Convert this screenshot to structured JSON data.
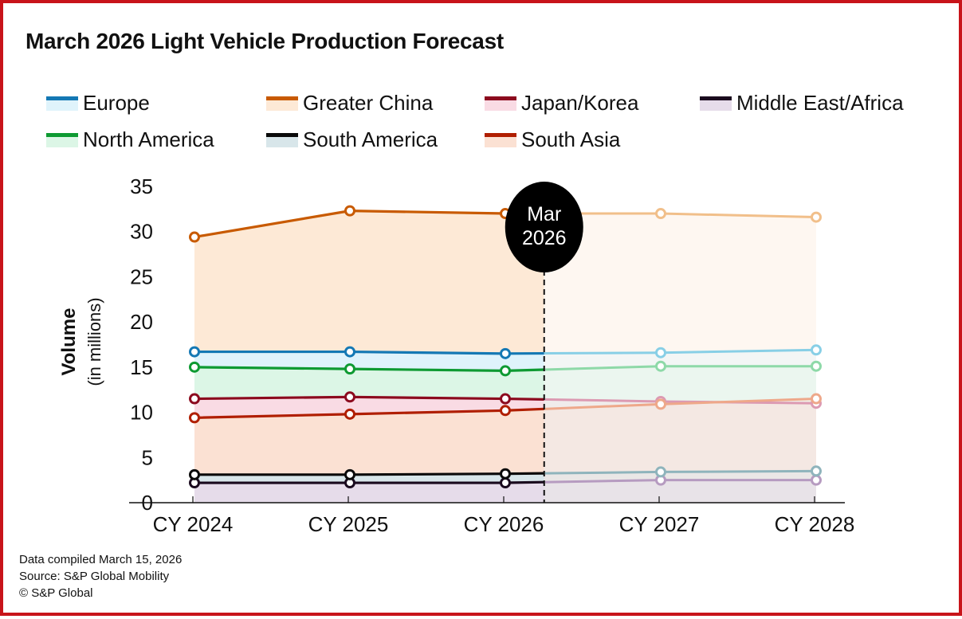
{
  "title": "March 2026 Light Vehicle Production Forecast",
  "marker_label": [
    "Mar",
    "2026"
  ],
  "footer": {
    "compiled": "Data compiled March 15, 2026",
    "source": "Source: S&P Global Mobility",
    "copyright": "© S&P Global"
  },
  "chart_data": {
    "type": "line",
    "title": "March 2026 Light Vehicle Production Forecast",
    "xlabel": "",
    "ylabel": "Volume",
    "ylabel_sub": "(in millions)",
    "categories": [
      "CY 2024",
      "CY 2025",
      "CY 2026",
      "CY 2027",
      "CY 2028"
    ],
    "ylim": [
      0,
      35
    ],
    "yticks": [
      0,
      5,
      10,
      15,
      20,
      25,
      30,
      35
    ],
    "forecast_divider": {
      "label": "Mar 2026",
      "position_between": [
        "CY 2026",
        "CY 2027"
      ],
      "fraction": 0.25
    },
    "legend_position": "top",
    "grid": false,
    "series": [
      {
        "name": "Europe",
        "color": "#1478b4",
        "light": "#88cfe6",
        "fill": "#dff3fb",
        "values": [
          16.7,
          16.7,
          16.5,
          16.6,
          16.9
        ]
      },
      {
        "name": "Greater China",
        "color": "#c85a00",
        "light": "#f1bf8a",
        "fill": "#fde9d6",
        "values": [
          29.4,
          32.3,
          32.0,
          32.0,
          31.6
        ]
      },
      {
        "name": "Japan/Korea",
        "color": "#8c0a1e",
        "light": "#dc9ab2",
        "fill": "#f9dbe4",
        "values": [
          11.5,
          11.7,
          11.5,
          11.2,
          11.0
        ]
      },
      {
        "name": "Middle East/Africa",
        "color": "#1a0a1e",
        "light": "#b69bc0",
        "fill": "#e6dcea",
        "values": [
          2.2,
          2.2,
          2.2,
          2.5,
          2.5
        ]
      },
      {
        "name": "North America",
        "color": "#0e9a32",
        "light": "#8ed9a8",
        "fill": "#dcf6e6",
        "values": [
          15.0,
          14.8,
          14.6,
          15.1,
          15.1
        ]
      },
      {
        "name": "South America",
        "color": "#0a0a0a",
        "light": "#8fb4bc",
        "fill": "#d8e6ea",
        "values": [
          3.1,
          3.1,
          3.2,
          3.4,
          3.5
        ]
      },
      {
        "name": "South Asia",
        "color": "#b01e00",
        "light": "#eea88a",
        "fill": "#fbe1d3",
        "values": [
          9.4,
          9.8,
          10.2,
          10.9,
          11.5
        ]
      }
    ]
  }
}
